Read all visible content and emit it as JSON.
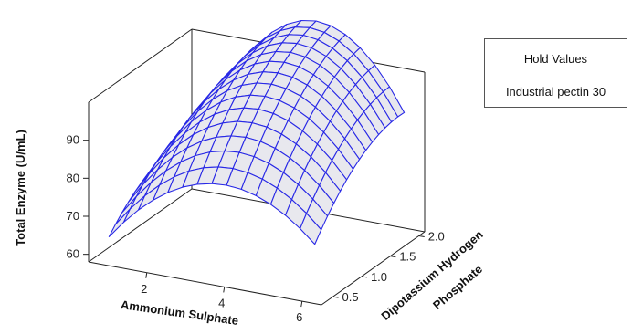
{
  "chart_data": {
    "type": "surface",
    "z_label": "Total Enzyme (U/mL)",
    "x_label": "Ammonium Sulphate",
    "y_label": [
      "Dipotassium Hydrogen",
      "Phosphate"
    ],
    "x_range": [
      0.5,
      6.5
    ],
    "y_range": [
      0.3,
      2.1
    ],
    "z_range": [
      58,
      100
    ],
    "x_ticks": [
      "2",
      "4",
      "6"
    ],
    "y_ticks": [
      "0.5",
      "1.0",
      "1.5",
      "2.0"
    ],
    "z_ticks": [
      "60",
      "70",
      "80",
      "90"
    ],
    "grid_size": 14,
    "surface_corners": {
      "x_low_y_low": 64,
      "x_high_y_low": 72,
      "x_low_y_high": 74,
      "x_high_y_high": 90,
      "peak": 94
    },
    "surface_color": "#2828e6",
    "surface_fill": "#e8e8ee",
    "hold_values": {
      "title": "Hold Values",
      "line": "Industrial pectin 30"
    }
  }
}
